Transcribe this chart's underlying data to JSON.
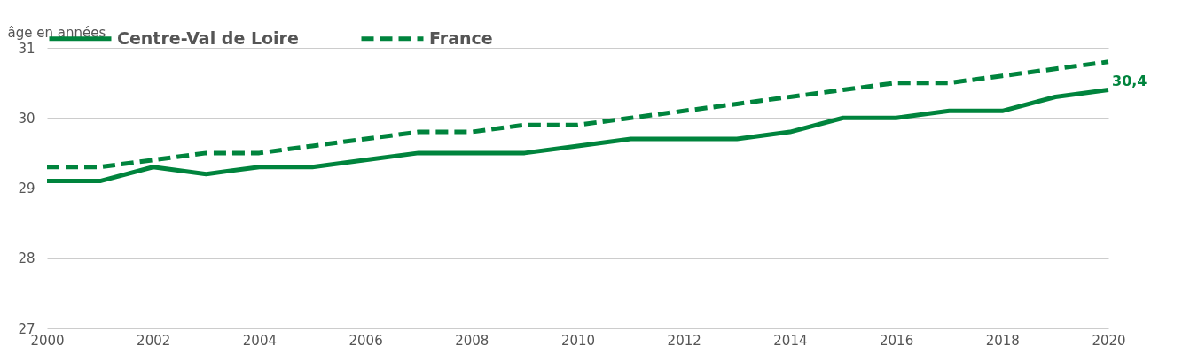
{
  "chart_data": {
    "type": "line",
    "ylabel": "âge en années",
    "x": [
      2000,
      2001,
      2002,
      2003,
      2004,
      2005,
      2006,
      2007,
      2008,
      2009,
      2010,
      2011,
      2012,
      2013,
      2014,
      2015,
      2016,
      2017,
      2018,
      2019,
      2020
    ],
    "xlim": [
      2000,
      2020
    ],
    "xticks": [
      2000,
      2002,
      2004,
      2006,
      2008,
      2010,
      2012,
      2014,
      2016,
      2018,
      2020
    ],
    "ylim": [
      27,
      31
    ],
    "yticks": [
      27,
      28,
      29,
      30,
      31
    ],
    "grid": "y",
    "legend": "top",
    "series": [
      {
        "name": "Centre-Val de Loire",
        "color": "#00843d",
        "line_style": "solid",
        "values": [
          29.1,
          29.1,
          29.3,
          29.2,
          29.3,
          29.3,
          29.4,
          29.5,
          29.5,
          29.5,
          29.6,
          29.7,
          29.7,
          29.7,
          29.8,
          30.0,
          30.0,
          30.1,
          30.1,
          30.3,
          30.4
        ]
      },
      {
        "name": "France",
        "color": "#00843d",
        "line_style": "dashed",
        "values": [
          29.3,
          29.3,
          29.4,
          29.5,
          29.5,
          29.6,
          29.7,
          29.8,
          29.8,
          29.9,
          29.9,
          30.0,
          30.1,
          30.2,
          30.3,
          30.4,
          30.5,
          30.5,
          30.6,
          30.7,
          30.8
        ]
      }
    ],
    "annotations": [
      {
        "text": "30,4",
        "x": 2020,
        "y": 30.4
      }
    ]
  }
}
